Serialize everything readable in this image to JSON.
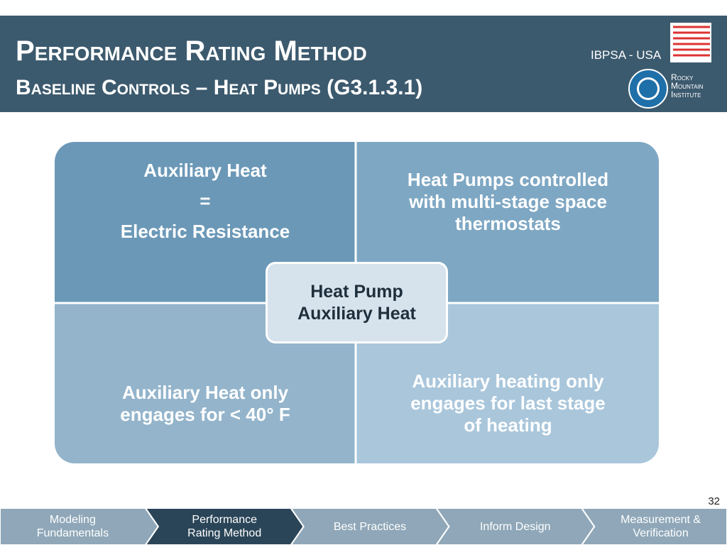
{
  "header": {
    "title": "Performance Rating Method",
    "subtitle": "Baseline Controls – Heat Pumps (G3.1.3.1)"
  },
  "logos": {
    "ibpsa": "IBPSA - USA",
    "rmi": [
      "Rocky",
      "Mountain",
      "Institute"
    ]
  },
  "matrix": {
    "center": [
      "Heat Pump",
      "Auxiliary Heat"
    ],
    "quadrants": [
      [
        "Auxiliary Heat",
        "=",
        "Electric Resistance"
      ],
      [
        "Heat Pumps controlled",
        "with multi-stage space",
        "thermostats"
      ],
      [
        "Auxiliary Heat only",
        "engages for < 40° F"
      ],
      [
        "Auxiliary heating only",
        "engages for last stage",
        "of heating"
      ]
    ]
  },
  "page_number": "32",
  "nav": [
    [
      "Modeling",
      "Fundamentals"
    ],
    [
      "Performance",
      "Rating Method"
    ],
    [
      "Best Practices"
    ],
    [
      "Inform Design"
    ],
    [
      "Measurement &",
      "Verification"
    ]
  ],
  "nav_active": 1
}
